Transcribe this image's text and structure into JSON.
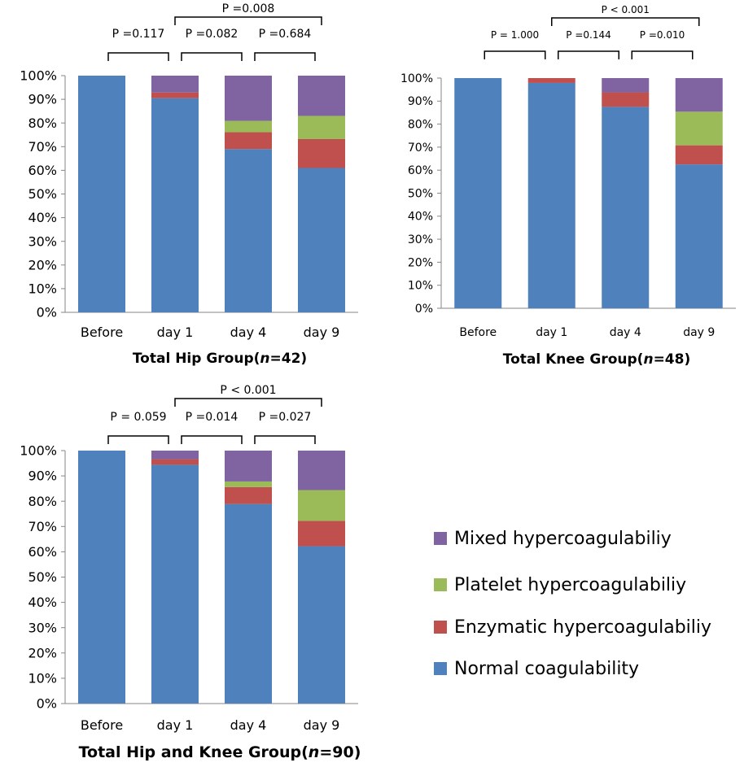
{
  "chart_data": [
    {
      "type": "bar",
      "stacked": true,
      "title": "Total Hip Group(n=42)",
      "title_parts": [
        "Total Hip Group(",
        "n",
        "=42)"
      ],
      "categories": [
        "Before",
        "day 1",
        "day 4",
        "day 9"
      ],
      "y_ticks": [
        "0%",
        "10%",
        "20%",
        "30%",
        "40%",
        "50%",
        "60%",
        "70%",
        "80%",
        "90%",
        "100%"
      ],
      "ylim": [
        0,
        100
      ],
      "series": [
        {
          "name": "Normal coagulability",
          "color": "#4F81BD",
          "values": [
            100,
            90.5,
            69,
            61
          ]
        },
        {
          "name": "Enzymatic hypercoagulabiliy",
          "color": "#C0504D",
          "values": [
            0,
            2.4,
            7.1,
            12.2
          ]
        },
        {
          "name": "Platelet hypercoagulabiliy",
          "color": "#9BBB59",
          "values": [
            0,
            0,
            4.8,
            9.8
          ]
        },
        {
          "name": "Mixed hypercoagulabiliy",
          "color": "#8064A2",
          "values": [
            0,
            7.1,
            19.1,
            17
          ]
        }
      ],
      "comparisons": [
        {
          "from": 0,
          "to": 1,
          "label": "P =0.117"
        },
        {
          "from": 1,
          "to": 2,
          "label": "P =0.082"
        },
        {
          "from": 2,
          "to": 3,
          "label": "P =0.684"
        },
        {
          "from": 1,
          "to": 3,
          "label": "P =0.008"
        }
      ]
    },
    {
      "type": "bar",
      "stacked": true,
      "title": "Total Knee Group(n=48)",
      "title_parts": [
        "Total Knee Group(",
        "n",
        "=48)"
      ],
      "categories": [
        "Before",
        "day 1",
        "day 4",
        "day 9"
      ],
      "y_ticks": [
        "0%",
        "10%",
        "20%",
        "30%",
        "40%",
        "50%",
        "60%",
        "70%",
        "80%",
        "90%",
        "100%"
      ],
      "ylim": [
        0,
        100
      ],
      "series": [
        {
          "name": "Normal coagulability",
          "color": "#4F81BD",
          "values": [
            100,
            97.9,
            87.5,
            62.5
          ]
        },
        {
          "name": "Enzymatic hypercoagulabiliy",
          "color": "#C0504D",
          "values": [
            0,
            2.1,
            6.3,
            8.3
          ]
        },
        {
          "name": "Platelet hypercoagulabiliy",
          "color": "#9BBB59",
          "values": [
            0,
            0,
            0,
            14.6
          ]
        },
        {
          "name": "Mixed hypercoagulabiliy",
          "color": "#8064A2",
          "values": [
            0,
            0,
            6.2,
            14.6
          ]
        }
      ],
      "comparisons": [
        {
          "from": 0,
          "to": 1,
          "label": "P = 1.000"
        },
        {
          "from": 1,
          "to": 2,
          "label": "P =0.144"
        },
        {
          "from": 2,
          "to": 3,
          "label": "P =0.010"
        },
        {
          "from": 1,
          "to": 3,
          "label": "P < 0.001"
        }
      ]
    },
    {
      "type": "bar",
      "stacked": true,
      "title": "Total Hip and Knee Group(n=90)",
      "title_parts": [
        "Total Hip and Knee Group(",
        "n",
        "=90)"
      ],
      "categories": [
        "Before",
        "day 1",
        "day 4",
        "day 9"
      ],
      "y_ticks": [
        "0%",
        "10%",
        "20%",
        "30%",
        "40%",
        "50%",
        "60%",
        "70%",
        "80%",
        "90%",
        "100%"
      ],
      "ylim": [
        0,
        100
      ],
      "series": [
        {
          "name": "Normal coagulability",
          "color": "#4F81BD",
          "values": [
            100,
            94.4,
            78.9,
            62.2
          ]
        },
        {
          "name": "Enzymatic hypercoagulabiliy",
          "color": "#C0504D",
          "values": [
            0,
            2.2,
            6.7,
            10
          ]
        },
        {
          "name": "Platelet hypercoagulabiliy",
          "color": "#9BBB59",
          "values": [
            0,
            0,
            2.2,
            12.2
          ]
        },
        {
          "name": "Mixed hypercoagulabiliy",
          "color": "#8064A2",
          "values": [
            0,
            3.4,
            12.2,
            15.6
          ]
        }
      ],
      "comparisons": [
        {
          "from": 0,
          "to": 1,
          "label": "P = 0.059"
        },
        {
          "from": 1,
          "to": 2,
          "label": "P =0.014"
        },
        {
          "from": 2,
          "to": 3,
          "label": "P =0.027"
        },
        {
          "from": 1,
          "to": 3,
          "label": "P < 0.001"
        }
      ]
    }
  ],
  "legend": [
    {
      "label": "Mixed hypercoagulabiliy",
      "color": "#8064A2",
      "icon": "purple-square"
    },
    {
      "label": "Platelet hypercoagulabiliy",
      "color": "#9BBB59",
      "icon": "green-square"
    },
    {
      "label": "Enzymatic hypercoagulabiliy",
      "color": "#C0504D",
      "icon": "red-square"
    },
    {
      "label": "Normal coagulability",
      "color": "#4F81BD",
      "icon": "blue-square"
    }
  ]
}
